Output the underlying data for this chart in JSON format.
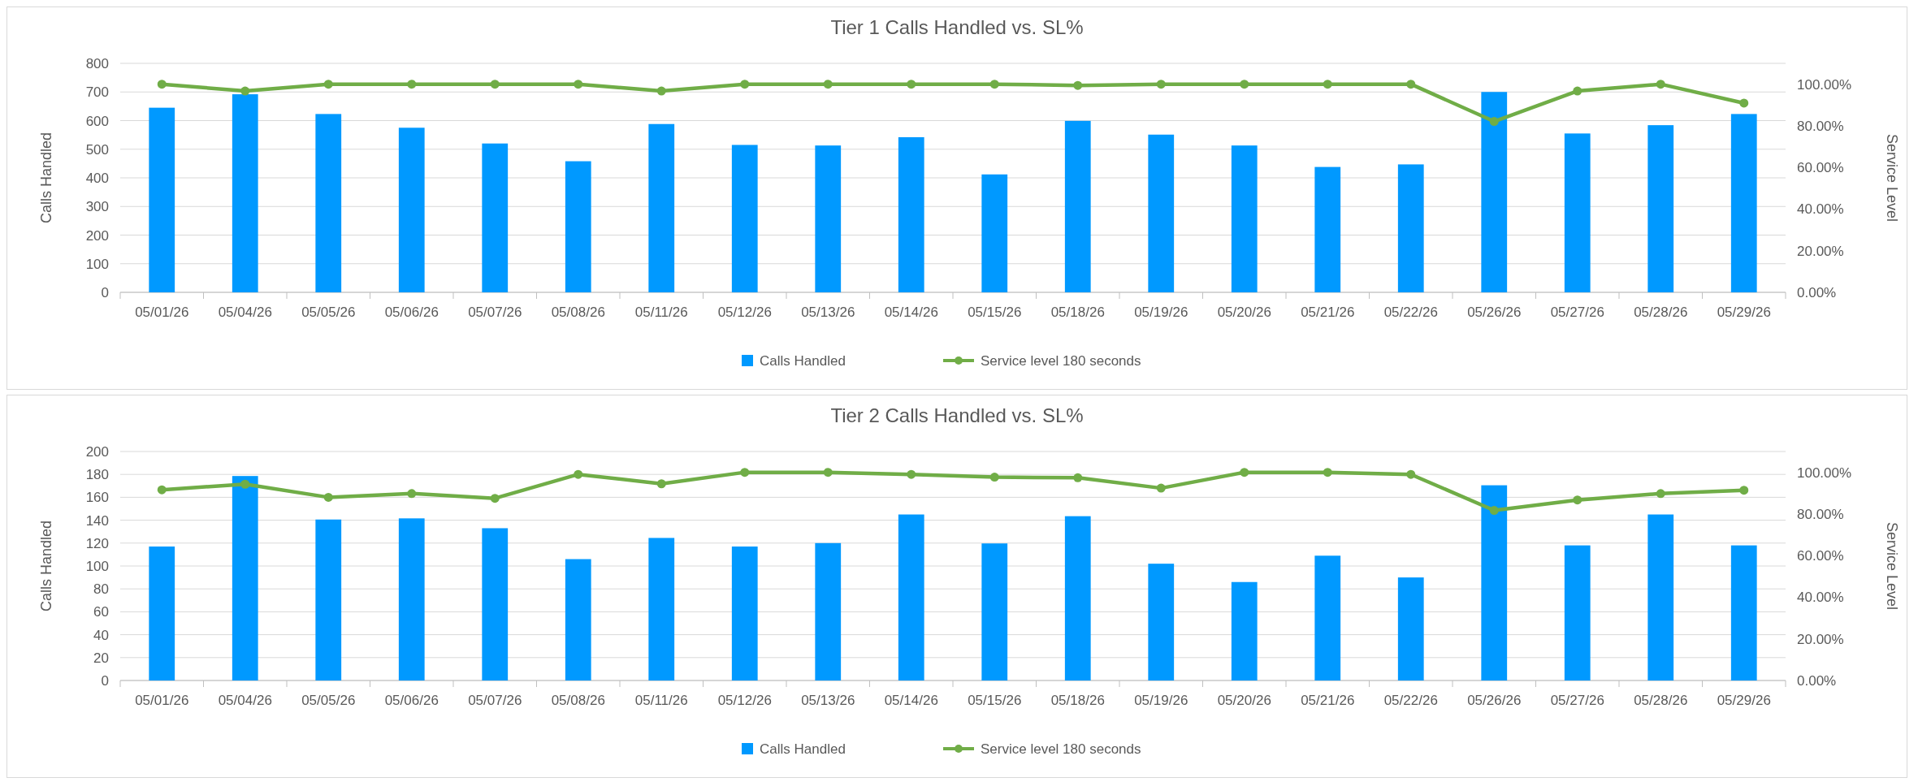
{
  "chart_data": [
    {
      "type": "bar",
      "title": "Tier 1 Calls Handled vs. SL%",
      "ylabel": "Calls Handled",
      "y2label": "Service Level",
      "categories": [
        "05/01/26",
        "05/04/26",
        "05/05/26",
        "05/06/26",
        "05/07/26",
        "05/08/26",
        "05/11/26",
        "05/12/26",
        "05/13/26",
        "05/14/26",
        "05/15/26",
        "05/18/26",
        "05/19/26",
        "05/20/26",
        "05/21/26",
        "05/22/26",
        "05/26/26",
        "05/27/26",
        "05/28/26",
        "05/29/26"
      ],
      "series": [
        {
          "name": "Calls Handled",
          "color": "#0099ff",
          "values": [
            645,
            692,
            623,
            575,
            520,
            458,
            588,
            515,
            513,
            542,
            412,
            599,
            551,
            513,
            438,
            447,
            700,
            555,
            584,
            623
          ]
        },
        {
          "name": "Service level 180 seconds",
          "type": "line",
          "axis": "y2",
          "color": "#70ad47",
          "values": [
            100,
            96.7,
            100,
            100,
            100,
            100,
            96.7,
            100,
            100,
            100,
            100,
            99.4,
            100,
            100,
            100,
            100,
            82.1,
            96.7,
            100,
            90.9
          ]
        }
      ],
      "ylim": [
        0,
        800
      ],
      "yticks": [
        0,
        100,
        200,
        300,
        400,
        500,
        600,
        700,
        800
      ],
      "y2lim": [
        0,
        110
      ],
      "y2ticks": [
        {
          "value": 0,
          "label": "0.00%"
        },
        {
          "value": 20,
          "label": "20.00%"
        },
        {
          "value": 40,
          "label": "40.00%"
        },
        {
          "value": 60,
          "label": "60.00%"
        },
        {
          "value": 80,
          "label": "80.00%"
        },
        {
          "value": 100,
          "label": "100.00%"
        }
      ],
      "grid": "y",
      "legend": "bottom",
      "marker": "circle"
    },
    {
      "type": "bar",
      "title": "Tier 2 Calls Handled vs. SL%",
      "ylabel": "Calls Handled",
      "y2label": "Service Level",
      "categories": [
        "05/01/26",
        "05/04/26",
        "05/05/26",
        "05/06/26",
        "05/07/26",
        "05/08/26",
        "05/11/26",
        "05/12/26",
        "05/13/26",
        "05/14/26",
        "05/15/26",
        "05/18/26",
        "05/19/26",
        "05/20/26",
        "05/21/26",
        "05/22/26",
        "05/26/26",
        "05/27/26",
        "05/28/26",
        "05/29/26"
      ],
      "series": [
        {
          "name": "Calls Handled",
          "color": "#0099ff",
          "values": [
            117,
            178.6,
            140.6,
            141.6,
            133,
            106,
            124.5,
            117,
            120,
            145,
            119.7,
            143.5,
            102,
            86,
            109,
            90,
            170.5,
            118,
            145,
            118
          ]
        },
        {
          "name": "Service level 180 seconds",
          "type": "line",
          "axis": "y2",
          "color": "#70ad47",
          "values": [
            91.6,
            94.3,
            88,
            89.8,
            87.5,
            99,
            94.5,
            100,
            100,
            99,
            97.7,
            97.4,
            92.4,
            100,
            100,
            99,
            81.7,
            86.7,
            89.8,
            91.4
          ]
        }
      ],
      "ylim": [
        0,
        200
      ],
      "yticks": [
        0,
        20,
        40,
        60,
        80,
        100,
        120,
        140,
        160,
        180,
        200
      ],
      "y2lim": [
        0,
        110
      ],
      "y2ticks": [
        {
          "value": 0,
          "label": "0.00%"
        },
        {
          "value": 20,
          "label": "20.00%"
        },
        {
          "value": 40,
          "label": "40.00%"
        },
        {
          "value": 60,
          "label": "60.00%"
        },
        {
          "value": 80,
          "label": "80.00%"
        },
        {
          "value": 100,
          "label": "100.00%"
        }
      ],
      "grid": "y",
      "legend": "bottom",
      "marker": "circle"
    }
  ]
}
